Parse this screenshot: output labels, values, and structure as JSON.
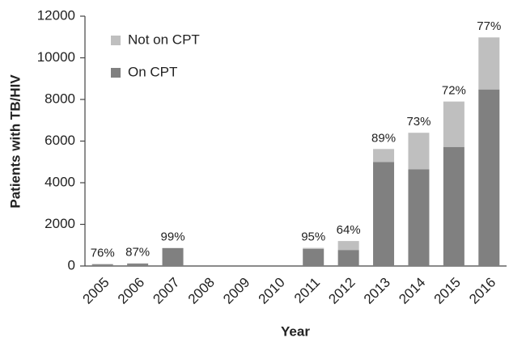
{
  "chart_data": {
    "type": "stacked_bar",
    "ylabel": "Patients with TB/HIV",
    "xlabel": "Year",
    "categories": [
      "2005",
      "2006",
      "2007",
      "2008",
      "2009",
      "2010",
      "2011",
      "2012",
      "2013",
      "2014",
      "2015",
      "2016"
    ],
    "series": [
      {
        "name": "Not on CPT",
        "color": "#bfbfbf",
        "values": [
          25,
          17,
          10,
          0,
          0,
          0,
          44,
          430,
          620,
          1750,
          2180,
          2500
        ]
      },
      {
        "name": "On CPT",
        "color": "#808080",
        "values": [
          75,
          113,
          860,
          0,
          0,
          0,
          826,
          770,
          5000,
          4650,
          5720,
          8480
        ]
      }
    ],
    "annotations": [
      "76%",
      "87%",
      "99%",
      null,
      null,
      null,
      "95%",
      "64%",
      "89%",
      "73%",
      "72%",
      "77%"
    ],
    "ylim": [
      0,
      12000
    ],
    "yticks": [
      0,
      2000,
      4000,
      6000,
      8000,
      10000,
      12000
    ],
    "grid": false,
    "legend": "upper left"
  }
}
